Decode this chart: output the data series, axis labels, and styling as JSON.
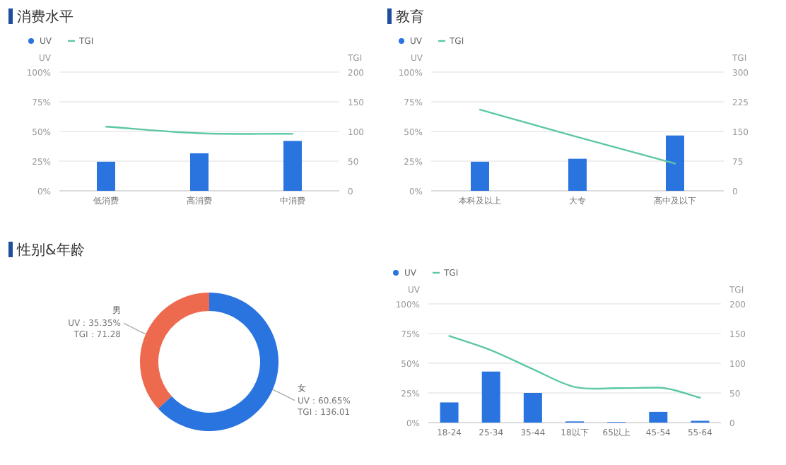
{
  "chart_data": [
    {
      "type": "bar",
      "title": "消费水平",
      "categories": [
        "低消费",
        "高消费",
        "中消费"
      ],
      "ylabel": "UV",
      "y2label": "TGI",
      "legend": "top left",
      "grid": "y",
      "marker": "none",
      "series": [
        {
          "name": "UV",
          "type": "bar",
          "color": "#2a74e0",
          "values": [
            24.5,
            31.6,
            42
          ]
        },
        {
          "name": "TGI",
          "type": "line",
          "axis": "y2",
          "color": "#5cc8a0",
          "values": [
            108,
            97,
            96
          ]
        }
      ],
      "ylim": [
        0,
        100
      ],
      "yticks": [
        {
          "value": 0,
          "label": "0%"
        },
        {
          "value": 25,
          "label": "25%"
        },
        {
          "value": 50,
          "label": "50%"
        },
        {
          "value": 75,
          "label": "75%"
        },
        {
          "value": 100,
          "label": "100%"
        }
      ],
      "y2lim": [
        0,
        200
      ],
      "y2ticks": [
        0,
        50,
        100,
        150,
        200
      ]
    },
    {
      "type": "bar",
      "title": "教育",
      "categories": [
        "本科及以上",
        "大专",
        "高中及以下"
      ],
      "ylabel": "UV",
      "y2label": "TGI",
      "legend": "top left",
      "grid": "y",
      "marker": "none",
      "series": [
        {
          "name": "UV",
          "type": "bar",
          "color": "#2a74e0",
          "values": [
            24.5,
            27,
            46.6
          ]
        },
        {
          "name": "TGI",
          "type": "line",
          "axis": "y2",
          "color": "#5cc8a0",
          "values": [
            205,
            136,
            69
          ]
        }
      ],
      "ylim": [
        0,
        100
      ],
      "yticks": [
        {
          "value": 0,
          "label": "0%"
        },
        {
          "value": 25,
          "label": "25%"
        },
        {
          "value": 50,
          "label": "50%"
        },
        {
          "value": 75,
          "label": "75%"
        },
        {
          "value": 100,
          "label": "100%"
        }
      ],
      "y2lim": [
        0,
        300
      ],
      "y2ticks": [
        0,
        75,
        150,
        225,
        300
      ]
    },
    {
      "type": "donut",
      "title": "性别&年龄",
      "categories": [
        "男",
        "女"
      ],
      "values": [
        35.35,
        60.65
      ],
      "colors": [
        "#ee6a4f",
        "#2a74e0"
      ],
      "value_labels": [
        "UV：35.35%",
        "UV：60.65%"
      ],
      "annotations": [
        "TGI：71.28",
        "TGI：136.01"
      ]
    },
    {
      "type": "bar",
      "categories": [
        "18-24",
        "25-34",
        "35-44",
        "18以下",
        "65以上",
        "45-54",
        "55-64"
      ],
      "ylabel": "UV",
      "y2label": "TGI",
      "legend": "top left",
      "grid": "y",
      "marker": "none",
      "series": [
        {
          "name": "UV",
          "type": "bar",
          "color": "#2a74e0",
          "values": [
            17,
            43,
            25,
            1,
            0.5,
            9,
            1.5
          ]
        },
        {
          "name": "TGI",
          "type": "line",
          "axis": "y2",
          "color": "#5cc8a0",
          "values": [
            146,
            122,
            90,
            60,
            58,
            59,
            42
          ]
        }
      ],
      "ylim": [
        0,
        100
      ],
      "yticks": [
        {
          "value": 0,
          "label": "0%"
        },
        {
          "value": 25,
          "label": "25%"
        },
        {
          "value": 50,
          "label": "50%"
        },
        {
          "value": 75,
          "label": "75%"
        },
        {
          "value": 100,
          "label": "100%"
        }
      ],
      "y2lim": [
        0,
        200
      ],
      "y2ticks": [
        0,
        50,
        100,
        150,
        200
      ]
    }
  ]
}
